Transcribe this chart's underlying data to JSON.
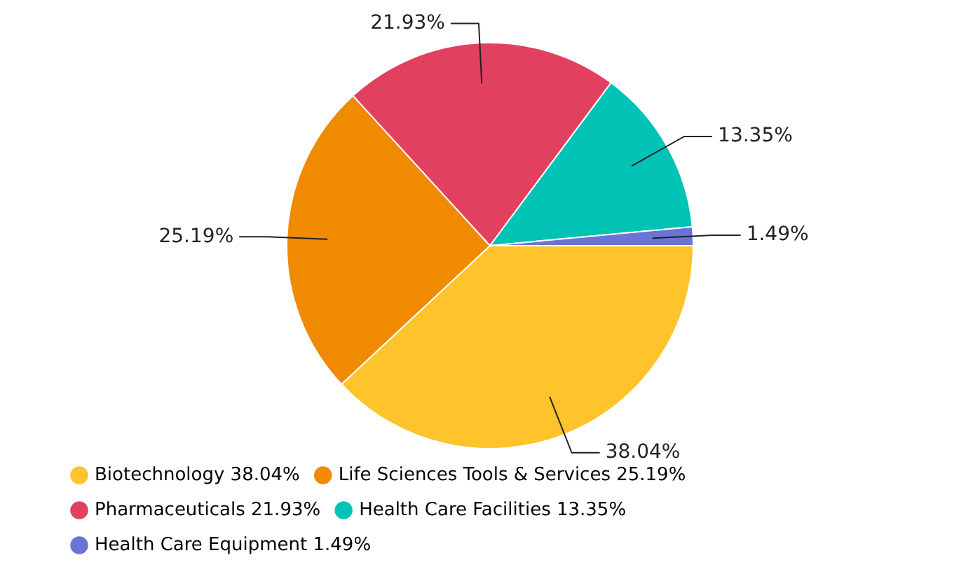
{
  "chart_data": {
    "type": "pie",
    "categories": [
      "Biotechnology",
      "Life Sciences Tools & Services",
      "Pharmaceuticals",
      "Health Care Facilities",
      "Health Care Equipment"
    ],
    "values": [
      38.04,
      25.19,
      21.93,
      13.35,
      1.49
    ],
    "colors": [
      "#ffc32b",
      "#f08a00",
      "#e2405f",
      "#00c3b5",
      "#6c73d6"
    ],
    "value_labels": [
      "38.04%",
      "25.19%",
      "21.93%",
      "13.35%",
      "1.49%"
    ],
    "legend": "bottom"
  }
}
